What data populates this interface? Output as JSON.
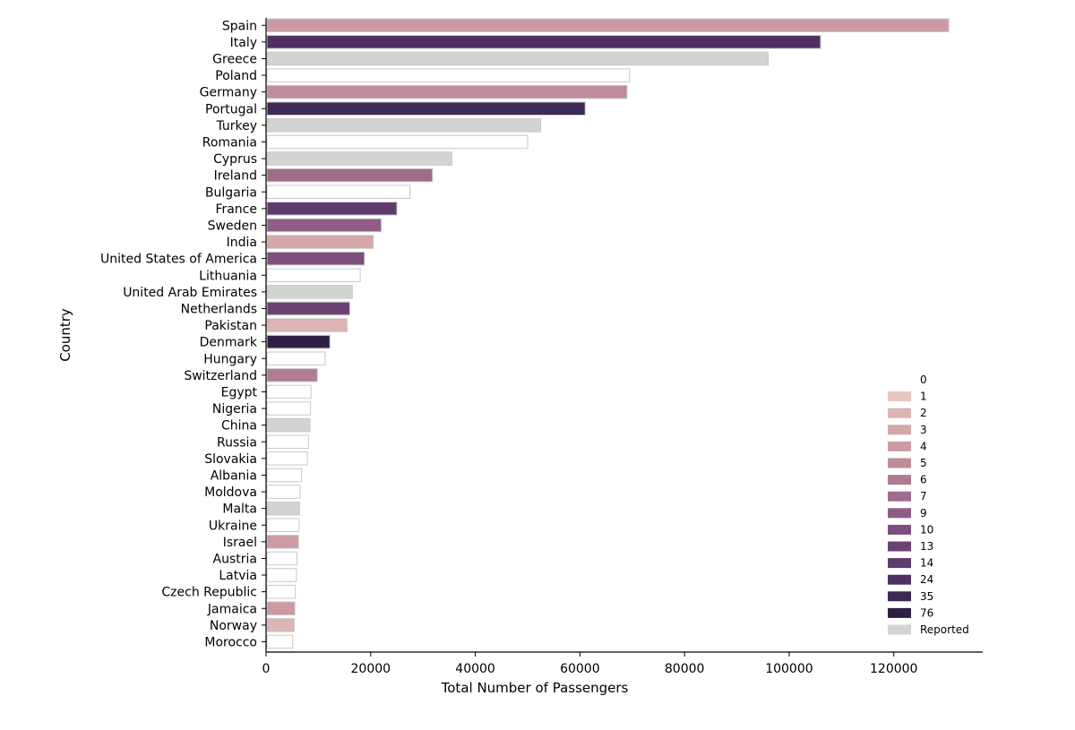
{
  "chart_data": {
    "type": "bar",
    "orientation": "horizontal",
    "xlabel": "Total Number of Passengers",
    "ylabel": "Country",
    "xlim": [
      0,
      137000
    ],
    "xticks": [
      0,
      20000,
      40000,
      60000,
      80000,
      100000,
      120000
    ],
    "grid": false,
    "legend_position": "bottom-right",
    "categories": [
      "Spain",
      "Italy",
      "Greece",
      "Poland",
      "Germany",
      "Portugal",
      "Turkey",
      "Romania",
      "Cyprus",
      "Ireland",
      "Bulgaria",
      "France",
      "Sweden",
      "India",
      "United States of America",
      "Lithuania",
      "United Arab Emirates",
      "Netherlands",
      "Pakistan",
      "Denmark",
      "Hungary",
      "Switzerland",
      "Egypt",
      "Nigeria",
      "China",
      "Russia",
      "Slovakia",
      "Albania",
      "Moldova",
      "Malta",
      "Ukraine",
      "Israel",
      "Austria",
      "Latvia",
      "Czech Republic",
      "Jamaica",
      "Norway",
      "Morocco"
    ],
    "values": [
      130500,
      106000,
      96000,
      69500,
      69000,
      61000,
      52500,
      50000,
      35500,
      31800,
      27500,
      25000,
      22000,
      20500,
      18800,
      18000,
      16500,
      16000,
      15500,
      12200,
      11300,
      9800,
      8600,
      8500,
      8400,
      8100,
      7900,
      6800,
      6500,
      6400,
      6300,
      6200,
      5900,
      5800,
      5600,
      5500,
      5400,
      5100
    ],
    "hue": [
      "4",
      "24",
      "Reported",
      "0",
      "5",
      "35",
      "Reported",
      "0",
      "Reported",
      "7",
      "0",
      "14",
      "9",
      "3",
      "10",
      "0",
      "Reported",
      "13",
      "2",
      "76",
      "0",
      "6",
      "0",
      "0",
      "Reported",
      "0",
      "0",
      "0",
      "0",
      "Reported",
      "0",
      "4",
      "0",
      "0",
      "0",
      "4",
      "2",
      "0"
    ],
    "legend": {
      "labels": [
        "0",
        "1",
        "2",
        "3",
        "4",
        "5",
        "6",
        "7",
        "9",
        "10",
        "13",
        "14",
        "24",
        "35",
        "76",
        "Reported"
      ],
      "colors": [
        "#ffffff",
        "#e8c6c0",
        "#dbb4b3",
        "#d4a7a8",
        "#cb9aa3",
        "#bf8c9c",
        "#b07b93",
        "#a06c8e",
        "#8f5d86",
        "#7e4e7e",
        "#6c4275",
        "#5f3a6d",
        "#4e3063",
        "#3d2856",
        "#2f1f45",
        "#d3d3d3"
      ]
    }
  }
}
